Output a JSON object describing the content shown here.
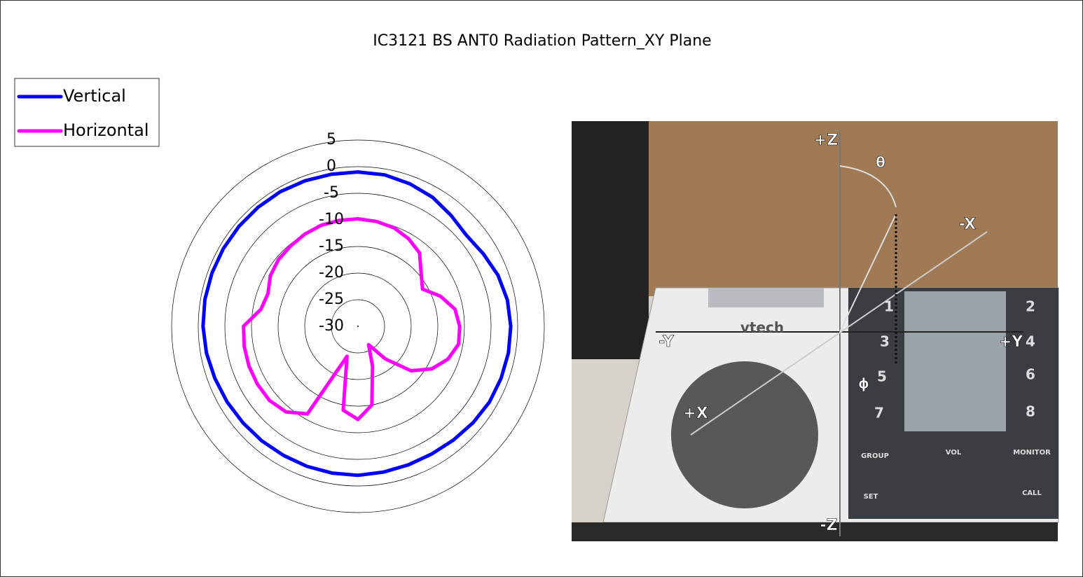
{
  "chart_data": {
    "type": "polar",
    "title": "IC3121 BS ANT0 Radiation Pattern_XY Plane",
    "theta": [
      0,
      10,
      20,
      30,
      40,
      50,
      60,
      70,
      80,
      90,
      100,
      110,
      120,
      130,
      140,
      150,
      160,
      170,
      180,
      190,
      200,
      210,
      220,
      230,
      240,
      250,
      260,
      270,
      280,
      290,
      300,
      310,
      320,
      330,
      340,
      350
    ],
    "series": [
      {
        "name": "Vertical",
        "color": "#0000ff",
        "values": [
          -1,
          -1.1,
          -1.5,
          -2,
          -2.8,
          -3.4,
          -2.8,
          -2,
          -1.5,
          -1.3,
          -1.3,
          -1.4,
          -1.5,
          -1.8,
          -2.1,
          -2.3,
          -2.3,
          -2.2,
          -2,
          -2,
          -2,
          -2,
          -1.9,
          -1.8,
          -1.6,
          -1.4,
          -1.1,
          -0.9,
          -0.8,
          -0.8,
          -0.8,
          -0.8,
          -0.8,
          -0.8,
          -0.9,
          -1
        ]
      },
      {
        "name": "Horizontal",
        "color": "#ff00ff",
        "values": [
          -9.8,
          -10,
          -10.3,
          -11,
          -12,
          -14.5,
          -16,
          -13.5,
          -11.5,
          -10.9,
          -10.8,
          -12,
          -14,
          -17,
          -22,
          -26,
          -22,
          -15,
          -12.5,
          -14,
          -24,
          -11,
          -9,
          -8.3,
          -8.2,
          -8.2,
          -8.3,
          -8.5,
          -11.5,
          -12,
          -11,
          -10.5,
          -10.3,
          -10,
          -9.8,
          -9.8
        ]
      }
    ],
    "rlim": [
      -30,
      5
    ],
    "rticks": [
      -30,
      -25,
      -20,
      -15,
      -10,
      -5,
      0,
      5
    ],
    "legend": "top-left"
  },
  "photo_labels": [
    "+Z",
    "θ",
    "-X",
    "-Y",
    "+Y",
    "+X",
    "-Z",
    "ϕ",
    "vtech",
    "1",
    "2",
    "3",
    "4",
    "5",
    "6",
    "7",
    "8",
    "GROUP",
    "VOL",
    "MONITOR",
    "SET",
    "CALL"
  ]
}
